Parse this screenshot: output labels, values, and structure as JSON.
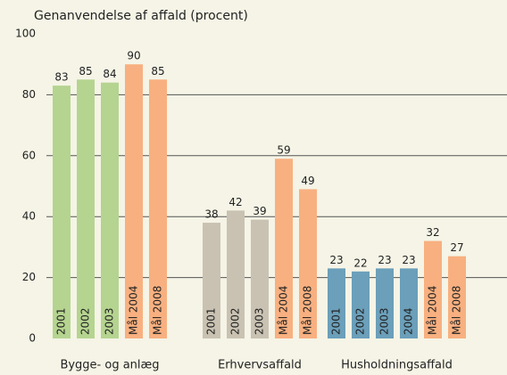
{
  "chart_data": {
    "type": "grouped_bar",
    "title": "Genanvendelse af affald (procent)",
    "ylim": [
      0,
      100
    ],
    "yticks": [
      0,
      20,
      40,
      60,
      80,
      100
    ],
    "grid": true,
    "groups": [
      {
        "name": "Bygge- og anlæg",
        "bars": [
          {
            "label": "2001",
            "value": 83,
            "color": "#b5d490"
          },
          {
            "label": "2002",
            "value": 85,
            "color": "#b5d490"
          },
          {
            "label": "2003",
            "value": 84,
            "color": "#b5d490"
          },
          {
            "label": "Mål 2004",
            "value": 90,
            "color": "#f8b080"
          },
          {
            "label": "Mål 2008",
            "value": 85,
            "color": "#f8b080"
          }
        ]
      },
      {
        "name": "Erhvervsaffald",
        "bars": [
          {
            "label": "2001",
            "value": 38,
            "color": "#c9c2b2"
          },
          {
            "label": "2002",
            "value": 42,
            "color": "#c9c2b2"
          },
          {
            "label": "2003",
            "value": 39,
            "color": "#c9c2b2"
          },
          {
            "label": "Mål 2004",
            "value": 59,
            "color": "#f8b080"
          },
          {
            "label": "Mål 2008",
            "value": 49,
            "color": "#f8b080"
          }
        ]
      },
      {
        "name": "Husholdningsaffald",
        "bars": [
          {
            "label": "2001",
            "value": 23,
            "color": "#6b9fba"
          },
          {
            "label": "2002",
            "value": 22,
            "color": "#6b9fba"
          },
          {
            "label": "2003",
            "value": 23,
            "color": "#6b9fba"
          },
          {
            "label": "2004",
            "value": 23,
            "color": "#6b9fba"
          },
          {
            "label": "Mål 2004",
            "value": 32,
            "color": "#f8b080"
          },
          {
            "label": "Mål 2008",
            "value": 27,
            "color": "#f8b080"
          }
        ]
      }
    ]
  }
}
